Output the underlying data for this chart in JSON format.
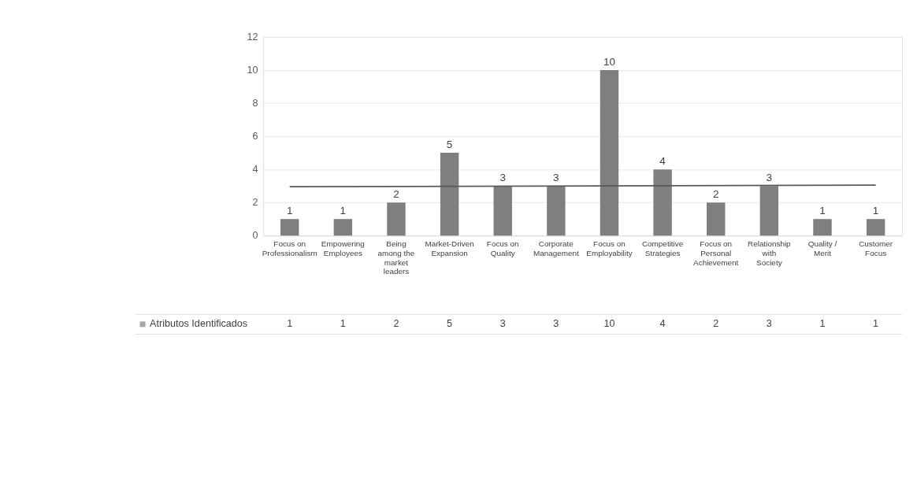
{
  "chart_data": {
    "type": "bar",
    "categories": [
      "Focus on Professionalism",
      "Empowering Employees",
      "Being among the market leaders",
      "Market-Driven Expansion",
      "Focus on Quality",
      "Corporate Management",
      "Focus on Employability",
      "Competitive Strategies",
      "Focus on Personal Achievement",
      "Relationship with Society",
      "Quality / Merit",
      "Customer Focus"
    ],
    "series": [
      {
        "name": "Atributos Identificados",
        "color": "#7f7f7f",
        "values": [
          1,
          1,
          2,
          5,
          3,
          3,
          10,
          4,
          2,
          3,
          1,
          1
        ],
        "value_labels": [
          "1",
          "1",
          "2",
          "5",
          "3",
          "3",
          "10",
          "4",
          "2",
          "3",
          "1",
          "1"
        ]
      },
      {
        "type": "line",
        "color": "#595959",
        "x": [
          "Focus on Professionalism",
          "Customer Focus"
        ],
        "values": [
          2.95,
          3.05
        ]
      }
    ],
    "ylim": [
      0,
      12
    ],
    "yticks": [
      0,
      2,
      4,
      6,
      8,
      10,
      12
    ],
    "grid": "y",
    "legend": "bottom left"
  }
}
